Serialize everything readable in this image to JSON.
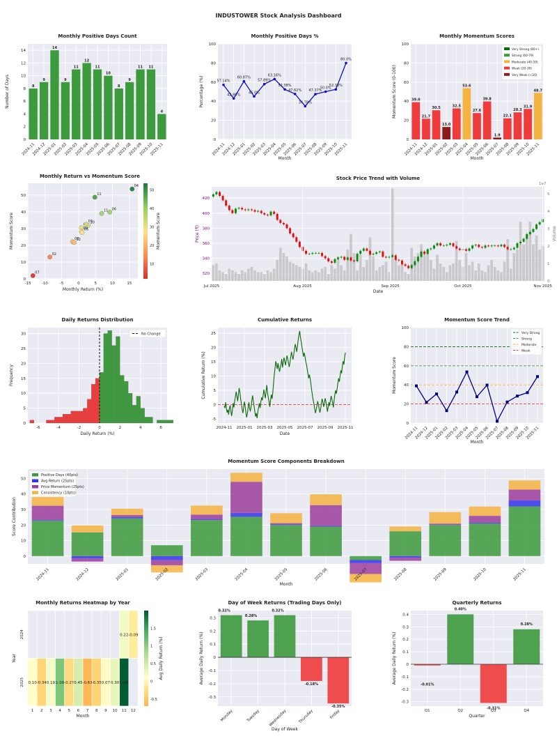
{
  "dashboard_title": "INDUSTOWER Stock Analysis Dashboard",
  "colors": {
    "green": "#3d9a3d",
    "red": "#ee3b3b",
    "orange": "#f5b342",
    "darkred": "#8b1a1a",
    "blue": "#1010c8",
    "purple": "#9b3d9b",
    "plotbg": "#eaeaf2",
    "volume": "#bdbdbd"
  },
  "chart_data": [
    {
      "id": "pos_days",
      "type": "bar",
      "title": "Monthly Positive Days Count",
      "xlabel": "",
      "ylabel": "Number of Days",
      "categories": [
        "2024-11",
        "2024-12",
        "2025-01",
        "2025-02",
        "2025-03",
        "2025-04",
        "2025-05",
        "2025-06",
        "2025-07",
        "2025-08",
        "2025-09",
        "2025-10",
        "2025-11"
      ],
      "values": [
        8,
        9,
        14,
        9,
        11,
        12,
        11,
        10,
        8,
        9,
        11,
        11,
        4
      ],
      "ylim": [
        0,
        15
      ],
      "yticks": [
        0,
        2,
        4,
        6,
        8,
        10,
        12,
        14
      ],
      "grid": true
    },
    {
      "id": "pos_pct",
      "type": "line",
      "title": "Monthly Positive Days %",
      "xlabel": "Month",
      "ylabel": "Percentage (%)",
      "categories": [
        "2024-11",
        "2024-12",
        "2025-01",
        "2025-02",
        "2025-03",
        "2025-04",
        "2025-05",
        "2025-06",
        "2025-07",
        "2025-08",
        "2025-09",
        "2025-10",
        "2025-11"
      ],
      "values": [
        57.14,
        42.86,
        60.87,
        45.0,
        57.89,
        63.16,
        52.38,
        47.62,
        34.78,
        47.37,
        50.0,
        52.38,
        80.0
      ],
      "point_labels": [
        "57.14%",
        "42.86%",
        "60.87%",
        "45.0%",
        "57.89%",
        "63.16%",
        "52.38%",
        "47.62%",
        "34.78%",
        "47.37%",
        "50.0%",
        "52.38%",
        "80.0%"
      ],
      "ylim": [
        0,
        100
      ],
      "yticks": [
        0,
        20,
        40,
        60,
        80,
        100
      ],
      "grid": true
    },
    {
      "id": "momentum",
      "type": "bar",
      "title": "Monthly Momentum Scores",
      "xlabel": "Month",
      "ylabel": "Momentum Score (0-100)",
      "categories": [
        "2024-11",
        "2024-12",
        "2025-01",
        "2025-02",
        "2025-03",
        "2025-04",
        "2025-05",
        "2025-06",
        "2025-07",
        "2025-08",
        "2025-09",
        "2025-10",
        "2025-11"
      ],
      "values": [
        39.0,
        21.7,
        30.5,
        13.0,
        32.5,
        53.6,
        27.6,
        39.8,
        1.9,
        22.1,
        28.3,
        31.9,
        48.7
      ],
      "value_labels": [
        "39.0",
        "21.7",
        "30.5",
        "13.0",
        "32.5",
        "53.6",
        "27.6",
        "39.8",
        "1.9",
        "22.1",
        "28.3",
        "31.9",
        "48.7"
      ],
      "bar_classes": [
        "weak",
        "weak",
        "weak",
        "veryweak",
        "weak",
        "moderate",
        "weak",
        "weak",
        "veryweak",
        "weak",
        "weak",
        "weak",
        "moderate"
      ],
      "ylim": [
        0,
        100
      ],
      "yticks": [
        0,
        20,
        40,
        60,
        80,
        100
      ],
      "grid": true,
      "legend": [
        {
          "label": "Very Strong (80+)",
          "color": "#0b6b0b"
        },
        {
          "label": "Strong (60-79)",
          "color": "#3d9a3d"
        },
        {
          "label": "Moderate (40-59)",
          "color": "#f5b342"
        },
        {
          "label": "Weak (20-39)",
          "color": "#ee3b3b"
        },
        {
          "label": "Very Weak (<20)",
          "color": "#8b1a1a"
        }
      ],
      "legend_position": "top-right"
    },
    {
      "id": "scatter",
      "type": "scatter",
      "title": "Monthly Return vs Momentum Score",
      "xlabel": "Monthly Return (%)",
      "ylabel": "Momentum Score",
      "points": [
        {
          "label": "07",
          "x": -13.5,
          "y": 1.9
        },
        {
          "label": "02",
          "x": -8.5,
          "y": 13.0
        },
        {
          "label": "08",
          "x": -1.8,
          "y": 22.1
        },
        {
          "label": "12",
          "x": -1.3,
          "y": 21.7
        },
        {
          "label": "01",
          "x": 0.8,
          "y": 30.5
        },
        {
          "label": "09",
          "x": 0.8,
          "y": 28.3
        },
        {
          "label": "05",
          "x": 1.0,
          "y": 27.6
        },
        {
          "label": "10",
          "x": 2.8,
          "y": 31.9
        },
        {
          "label": "03",
          "x": 2.2,
          "y": 32.5
        },
        {
          "label": "11",
          "x": 6.8,
          "y": 39.0
        },
        {
          "label": "06",
          "x": 9.2,
          "y": 39.8
        },
        {
          "label": "11",
          "x": 4.8,
          "y": 48.7
        },
        {
          "label": "04",
          "x": 15.8,
          "y": 53.6
        }
      ],
      "xlim": [
        -15,
        17.5
      ],
      "ylim": [
        0,
        57
      ],
      "xticks": [
        -15,
        -10,
        -5,
        0,
        5,
        10,
        15
      ],
      "yticks": [
        0,
        10,
        20,
        30,
        40,
        50
      ],
      "colorbar_label": "Momentum Score",
      "colorbar_range": [
        1.9,
        53.6
      ],
      "colorbar_ticks": [
        10,
        20,
        30,
        40,
        50
      ]
    },
    {
      "id": "price",
      "type": "candlestick",
      "title": "Stock Price Trend with Volume",
      "xlabel": "Date",
      "ylabel": "Price (₹)",
      "y2label": "Volume",
      "y2_exponent": "1e7",
      "xticks": [
        "Jul 2025",
        "Aug 2025",
        "Sep 2025",
        "Oct 2025",
        "Nov 2025"
      ],
      "ylim": [
        310,
        435
      ],
      "yticks": [
        320,
        340,
        360,
        380,
        400,
        420
      ],
      "y2lim": [
        0,
        5.4
      ],
      "y2ticks": [
        0,
        1,
        2,
        3,
        4,
        5
      ],
      "closes": [
        425,
        428,
        423,
        417,
        410,
        404,
        400,
        406,
        407,
        405,
        404,
        405,
        404,
        402,
        403,
        400,
        398,
        397,
        402,
        399,
        391,
        387,
        385,
        380,
        373,
        368,
        362,
        355,
        350,
        346,
        346,
        347,
        347,
        347,
        343,
        340,
        336,
        334,
        339,
        341,
        342,
        338,
        341,
        337,
        336,
        346,
        350,
        353,
        350,
        345,
        346,
        348,
        349,
        342,
        341,
        342,
        344,
        338,
        337,
        332,
        330,
        327,
        331,
        336,
        342,
        349,
        346,
        352,
        353,
        357,
        360,
        357,
        357,
        358,
        360,
        356,
        353,
        351,
        352,
        350,
        353,
        357,
        358,
        355,
        354,
        357,
        356,
        357,
        357,
        356,
        358,
        355,
        352,
        352,
        354,
        360,
        362,
        366,
        372,
        375,
        379,
        385,
        388,
        392
      ],
      "volumes": [
        0.9,
        1.0,
        0.6,
        0.5,
        0.4,
        0.7,
        0.6,
        0.5,
        0.4,
        0.6,
        0.5,
        0.7,
        0.8,
        0.6,
        0.5,
        0.5,
        0.4,
        0.6,
        0.5,
        0.7,
        1.2,
        1.9,
        1.6,
        1.4,
        1.1,
        1.0,
        0.9,
        0.8,
        0.7,
        1.0,
        0.6,
        0.5,
        0.6,
        0.5,
        0.7,
        0.8,
        0.4,
        0.9,
        0.7,
        1.4,
        0.9,
        0.6,
        1.8,
        2.7,
        1.6,
        0.6,
        1.5,
        0.8,
        1.2,
        2.5,
        1.4,
        0.6,
        0.8,
        0.9,
        1.1,
        0.5,
        5.3,
        1.3,
        0.9,
        1.0,
        0.5,
        0.4,
        1.9,
        1.4,
        1.6,
        2.1,
        1.6,
        1.8,
        1.2,
        0.7,
        1.5,
        1.0,
        0.8,
        0.5,
        0.9,
        1.0,
        2.3,
        1.2,
        0.8,
        1.6,
        0.9,
        1.1,
        0.6,
        1.0,
        0.6,
        0.5,
        0.9,
        1.2,
        0.8,
        0.6,
        0.5,
        1.1,
        2.4,
        0.7,
        1.6,
        1.8,
        3.4,
        2.1,
        2.7,
        3.4,
        2.1,
        2.6,
        1.8,
        2.0
      ],
      "grid": true
    },
    {
      "id": "dist",
      "type": "histogram",
      "title": "Daily Returns Distribution",
      "xlabel": "Daily Return (%)",
      "ylabel": "Frequency",
      "bin_start": -6.8,
      "bin_width": 0.4,
      "counts": [
        1,
        0,
        0,
        0,
        1,
        1,
        2,
        2,
        3,
        3,
        4,
        4,
        4,
        5,
        8,
        13,
        15,
        17,
        30,
        31,
        26,
        29,
        16,
        14,
        10,
        6,
        9,
        5,
        2,
        2,
        0,
        1,
        1,
        1,
        1
      ],
      "xlim": [
        -7,
        6.6
      ],
      "ylim": [
        0,
        32
      ],
      "xticks": [
        -6,
        -4,
        -2,
        0,
        2,
        4,
        6
      ],
      "yticks": [
        0,
        5,
        10,
        15,
        20,
        25,
        30
      ],
      "legend": [
        {
          "label": "No Change"
        }
      ],
      "legend_position": "top-right"
    },
    {
      "id": "cum",
      "type": "line",
      "title": "Cumulative Returns",
      "xlabel": "Date",
      "ylabel": "Cumulative Return (%)",
      "xticks": [
        "2024-11",
        "2025-01",
        "2025-03",
        "2025-05",
        "2025-07",
        "2025-09",
        "2025-11"
      ],
      "ylim": [
        -6.5,
        27
      ],
      "yticks": [
        -5,
        0,
        5,
        10,
        15,
        20,
        25
      ],
      "values": [
        -0.5,
        -1.2,
        0.8,
        -1.5,
        -2.8,
        -1.8,
        -3.5,
        -1.2,
        -0.3,
        -2.5,
        -4.0,
        -1.9,
        0.5,
        -1.0,
        1.2,
        2.8,
        4.5,
        3.0,
        1.2,
        3.5,
        5.8,
        4.2,
        2.0,
        0.3,
        -1.5,
        -3.0,
        -1.2,
        1.0,
        -0.5,
        -2.8,
        -4.5,
        -3.2,
        -1.0,
        0.8,
        -1.5,
        -2.2,
        -0.8,
        1.5,
        3.2,
        1.0,
        -0.5,
        -2.5,
        -4.2,
        -3.0,
        -4.8,
        -2.5,
        -1.0,
        0.5,
        -1.2,
        0.8,
        2.5,
        1.5,
        3.0,
        5.2,
        3.8,
        2.2,
        4.5,
        6.8,
        4.0,
        2.5,
        1.0,
        -0.8,
        1.5,
        3.5,
        2.0,
        4.2,
        7.5,
        10.5,
        12.8,
        15.2,
        13.8,
        12.5,
        14.5,
        13.0,
        11.5,
        12.8,
        14.2,
        16.0,
        13.0,
        14.8,
        16.5,
        15.2,
        13.8,
        15.5,
        17.2,
        16.0,
        14.5,
        13.2,
        14.8,
        16.8,
        18.5,
        17.0,
        15.8,
        17.5,
        19.5,
        21.2,
        20.0,
        18.5,
        20.5,
        22.8,
        24.5,
        25.8,
        23.5,
        22.0,
        20.2,
        18.5,
        16.8,
        18.2,
        17.0,
        15.2,
        14.0,
        12.5,
        10.8,
        9.2,
        10.5,
        9.0,
        7.2,
        5.0,
        3.2,
        1.5,
        0.2,
        -1.5,
        -3.0,
        -1.8,
        -0.5,
        1.2,
        0.0,
        -1.5,
        -2.8,
        -1.5,
        0.5,
        2.0,
        0.8,
        -0.8,
        0.5,
        2.2,
        1.0,
        -0.5,
        -2.5,
        -1.0,
        0.8,
        -0.5,
        1.5,
        3.0,
        1.8,
        0.5,
        -1.0,
        1.5,
        3.5,
        5.0,
        3.8,
        5.5,
        7.5,
        9.2,
        8.0,
        10.2,
        12.0,
        11.0,
        13.5,
        15.2,
        14.0,
        16.5,
        18.2
      ],
      "zero_line": true,
      "grid": true
    },
    {
      "id": "trend",
      "type": "line",
      "title": "Momentum Score Trend",
      "xlabel": "Month",
      "ylabel": "Momentum Score",
      "categories": [
        "2024-11",
        "2024-12",
        "2025-01",
        "2025-02",
        "2025-03",
        "2025-04",
        "2025-05",
        "2025-06",
        "2025-07",
        "2025-08",
        "2025-09",
        "2025-10",
        "2025-11"
      ],
      "values": [
        39.0,
        21.7,
        30.5,
        13.0,
        32.5,
        53.6,
        27.6,
        39.8,
        1.9,
        22.1,
        28.3,
        31.9,
        48.7
      ],
      "ylim": [
        0,
        100
      ],
      "yticks": [
        0,
        20,
        40,
        60,
        80,
        100
      ],
      "thresholds": [
        {
          "label": "Very Strong",
          "y": 80,
          "color": "#0b6b0b"
        },
        {
          "label": "Strong",
          "y": 60,
          "color": "#3d9a3d"
        },
        {
          "label": "Moderate",
          "y": 40,
          "color": "#f5b342"
        },
        {
          "label": "Weak",
          "y": 20,
          "color": "#ee3b3b"
        }
      ],
      "legend_position": "top-right",
      "grid": true
    },
    {
      "id": "stacked",
      "type": "bar",
      "title": "Momentum Score Components Breakdown",
      "xlabel": "Month",
      "ylabel": "Score Contribution",
      "categories": [
        "2024-11",
        "2024-12",
        "2025-01",
        "2025-02",
        "2025-03",
        "2025-04",
        "2025-05",
        "2025-06",
        "2025-07",
        "2025-08",
        "2025-09",
        "2025-10",
        "2025-11"
      ],
      "series": [
        {
          "name": "Positive Days (40pts)",
          "color": "#3d9a3d",
          "values": [
            22.9,
            15.3,
            24.3,
            7.0,
            23.2,
            25.3,
            20.0,
            19.0,
            -2.5,
            16.0,
            20.0,
            21.0,
            32.0
          ]
        },
        {
          "name": "Avg Return (25pts)",
          "color": "#3333ee",
          "values": [
            0.5,
            -1.5,
            0.8,
            -2.5,
            0.5,
            2.5,
            0.5,
            0.5,
            -2.0,
            -1.0,
            0.3,
            0.5,
            3.8
          ]
        },
        {
          "name": "Price Momentum (25pts)",
          "color": "#9b3d9b",
          "values": [
            9.0,
            -2.0,
            1.3,
            -3.5,
            3.0,
            20.0,
            0.7,
            13.3,
            -7.0,
            -2.0,
            0.6,
            4.4,
            7.0
          ]
        },
        {
          "name": "Consistency (10pts)",
          "color": "#f5b342",
          "values": [
            6.6,
            4.4,
            4.1,
            -4.5,
            5.8,
            5.8,
            6.4,
            7.0,
            -5.4,
            3.0,
            7.4,
            6.0,
            5.9
          ]
        }
      ],
      "ylim": [
        -5,
        56
      ],
      "yticks": [
        0,
        10,
        20,
        30,
        40,
        50
      ],
      "legend_position": "top-left",
      "grid": true
    },
    {
      "id": "heatmap",
      "type": "heatmap",
      "title": "Monthly Returns Heatmap by Year",
      "xlabel": "Month",
      "ylabel": "Year",
      "columns": [
        "1",
        "2",
        "3",
        "4",
        "5",
        "6",
        "7",
        "8",
        "9",
        "10",
        "11",
        "12"
      ],
      "rows": [
        "2024",
        "2025"
      ],
      "values": [
        [
          null,
          null,
          null,
          null,
          null,
          null,
          null,
          null,
          null,
          null,
          0.22,
          -0.09
        ],
        [
          0.1,
          -0.34,
          0.19,
          1.08,
          -0.27,
          0.45,
          -0.63,
          -0.35,
          0.07,
          0.3,
          1.98,
          null
        ]
      ],
      "cell_labels": [
        [
          "",
          "",
          "",
          "",
          "",
          "",
          "",
          "",
          "",
          "",
          "0.22",
          "-0.09"
        ],
        [
          "0.10",
          "-0.34",
          "0.19",
          "1.08",
          "-0.27",
          "0.45",
          "-0.63",
          "-0.35",
          "0.07",
          "0.30",
          "1.98",
          ""
        ]
      ],
      "colorbar_label": "Avg Daily Return (%)",
      "colorbar_range": [
        -0.7,
        2.0
      ],
      "colorbar_ticks": [
        -0.5,
        0.0,
        0.5,
        1.0,
        1.5
      ]
    },
    {
      "id": "dow",
      "type": "bar",
      "title": "Day of Week Returns (Trading Days Only)",
      "xlabel": "Day of Week",
      "ylabel": "Average Daily Return (%)",
      "categories": [
        "Monday",
        "Tuesday",
        "Wednesday",
        "Thursday",
        "Friday"
      ],
      "values": [
        0.32,
        0.28,
        0.32,
        -0.18,
        -0.35
      ],
      "value_labels": [
        "0.32%",
        "0.28%",
        "0.32%",
        "-0.18%",
        "-0.35%"
      ],
      "ylim": [
        -0.37,
        0.355
      ],
      "yticks": [
        -0.3,
        -0.2,
        -0.1,
        0.0,
        0.1,
        0.2,
        0.3
      ],
      "grid": true
    },
    {
      "id": "quarter",
      "type": "bar",
      "title": "Quarterly Returns",
      "xlabel": "Quarter",
      "ylabel": "Average Daily Return (%)",
      "categories": [
        "Q1",
        "Q2",
        "Q3",
        "Q4"
      ],
      "values": [
        -0.01,
        0.4,
        -0.31,
        0.28
      ],
      "value_labels": [
        "-0.01%",
        "0.40%",
        "-0.31%",
        "0.28%"
      ],
      "ylim": [
        -0.335,
        0.43
      ],
      "yticks": [
        -0.3,
        -0.2,
        -0.1,
        0.0,
        0.1,
        0.2,
        0.3,
        0.4
      ],
      "grid": true
    }
  ]
}
